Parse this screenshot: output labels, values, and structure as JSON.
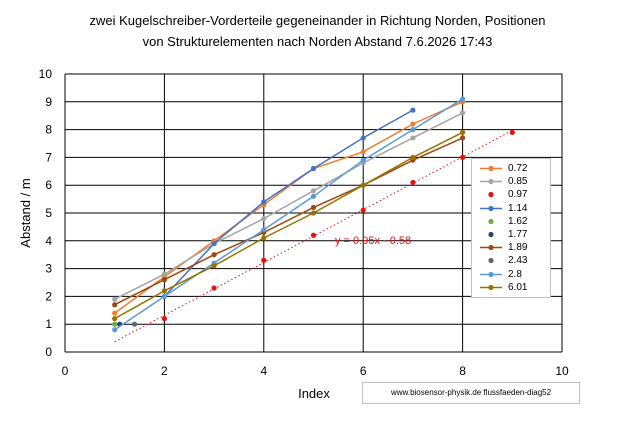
{
  "chart_data": {
    "type": "scatter",
    "title_line1": "zwei Kugelschreiber-Vorderteile gegeneinander in Richtung Norden, Positionen",
    "title_line2": "von Strukturelementen nach Norden Abstand   7.6.2026 17:43",
    "xlabel": "Index",
    "ylabel": "Abstand / m",
    "xlim": [
      0,
      10
    ],
    "ylim": [
      0,
      10
    ],
    "x_ticks": [
      "0",
      "2",
      "4",
      "6",
      "8",
      "10"
    ],
    "y_ticks": [
      "0",
      "1",
      "2",
      "3",
      "4",
      "5",
      "6",
      "7",
      "8",
      "9",
      "10"
    ],
    "grid": true,
    "legend_position": "right",
    "trendline_label": "y = 0.95x - 0.58",
    "trendline": {
      "slope": 0.95,
      "intercept": -0.58,
      "x_range": [
        1,
        9
      ],
      "series": "0.97",
      "color": "#e81010"
    },
    "series": [
      {
        "name": "0.72",
        "color": "#ed7d31",
        "line": true,
        "points": [
          [
            1,
            1.4
          ],
          [
            2,
            2.7
          ],
          [
            3,
            4.0
          ],
          [
            4,
            5.3
          ],
          [
            5,
            6.6
          ],
          [
            6,
            7.2
          ],
          [
            7,
            8.2
          ],
          [
            8,
            9.0
          ]
        ]
      },
      {
        "name": "0.85",
        "color": "#a5a5a5",
        "line": true,
        "points": [
          [
            1,
            1.9
          ],
          [
            2,
            2.8
          ],
          [
            3,
            3.9
          ],
          [
            4,
            4.8
          ],
          [
            5,
            5.8
          ],
          [
            6,
            6.8
          ],
          [
            7,
            7.7
          ],
          [
            8,
            8.6
          ]
        ]
      },
      {
        "name": "0.97",
        "color": "#e81010",
        "line": false,
        "points": [
          [
            2,
            1.2
          ],
          [
            3,
            2.3
          ],
          [
            4,
            3.3
          ],
          [
            5,
            4.2
          ],
          [
            6,
            5.1
          ],
          [
            7,
            6.1
          ],
          [
            8,
            7.0
          ],
          [
            9,
            7.9
          ]
        ]
      },
      {
        "name": "1.14",
        "color": "#4472c4",
        "line": true,
        "points": [
          [
            2,
            2.0
          ],
          [
            3,
            3.9
          ],
          [
            4,
            5.4
          ],
          [
            5,
            6.6
          ],
          [
            6,
            7.7
          ],
          [
            7,
            8.7
          ]
        ]
      },
      {
        "name": "1.62",
        "color": "#70ad47",
        "line": false,
        "points": [
          [
            1,
            1.0
          ]
        ]
      },
      {
        "name": "1.77",
        "color": "#264478",
        "line": false,
        "points": [
          [
            1.1,
            1.0
          ]
        ]
      },
      {
        "name": "1.89",
        "color": "#9e480e",
        "line": true,
        "points": [
          [
            1,
            1.7
          ],
          [
            2,
            2.6
          ],
          [
            3,
            3.5
          ],
          [
            4,
            4.3
          ],
          [
            5,
            5.2
          ],
          [
            6,
            6.0
          ],
          [
            7,
            6.9
          ],
          [
            8,
            7.7
          ]
        ]
      },
      {
        "name": "2.43",
        "color": "#636363",
        "line": false,
        "points": [
          [
            1.4,
            1.0
          ]
        ]
      },
      {
        "name": "2.8",
        "color": "#5b9bd5",
        "line": true,
        "points": [
          [
            1,
            0.8
          ],
          [
            2,
            2.0
          ],
          [
            3,
            3.2
          ],
          [
            4,
            4.4
          ],
          [
            5,
            5.6
          ],
          [
            6,
            6.9
          ],
          [
            7,
            8.0
          ],
          [
            8,
            9.1
          ]
        ]
      },
      {
        "name": "6.01",
        "color": "#997300",
        "line": true,
        "points": [
          [
            1,
            1.2
          ],
          [
            2,
            2.2
          ],
          [
            3,
            3.1
          ],
          [
            4,
            4.1
          ],
          [
            5,
            5.0
          ],
          [
            6,
            6.0
          ],
          [
            7,
            7.0
          ],
          [
            8,
            7.9
          ]
        ]
      }
    ]
  },
  "credit_text": "www.biosensor-physik.de  flussfaeden-diag52"
}
